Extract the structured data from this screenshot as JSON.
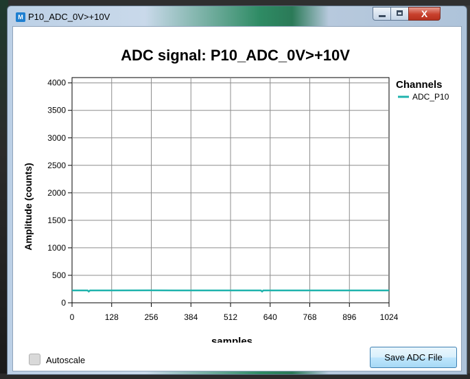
{
  "window": {
    "title": "P10_ADC_0V>+10V",
    "icon_glyph": "M",
    "icon_color": "#1f7fd0",
    "buttons": {
      "minimize": "minimize-icon",
      "maximize": "maximize-icon",
      "close": "close-icon",
      "close_glyph": "X"
    }
  },
  "chart_data": {
    "type": "line",
    "title": "ADC signal: P10_ADC_0V>+10V",
    "xlabel": "samples",
    "ylabel": "Amplitude (counts)",
    "xlim": [
      0,
      1024
    ],
    "ylim": [
      0,
      4096
    ],
    "xticks": [
      0,
      128,
      256,
      384,
      512,
      640,
      768,
      896,
      1024
    ],
    "yticks": [
      0,
      500,
      1000,
      1500,
      2000,
      2500,
      3000,
      3500,
      4000
    ],
    "grid": true,
    "legend_title": "Channels",
    "legend_position": "top-right",
    "series": [
      {
        "name": "ADC_P10",
        "color": "#1fb3ad",
        "x": [
          0,
          50,
          54,
          58,
          120,
          250,
          400,
          560,
          610,
          614,
          618,
          700,
          850,
          1024
        ],
        "y": [
          225,
          225,
          205,
          225,
          225,
          226,
          225,
          225,
          225,
          205,
          225,
          225,
          225,
          225
        ]
      }
    ]
  },
  "controls": {
    "autoscale_label": "Autoscale",
    "autoscale_checked": false,
    "save_button_label": "Save ADC File"
  }
}
